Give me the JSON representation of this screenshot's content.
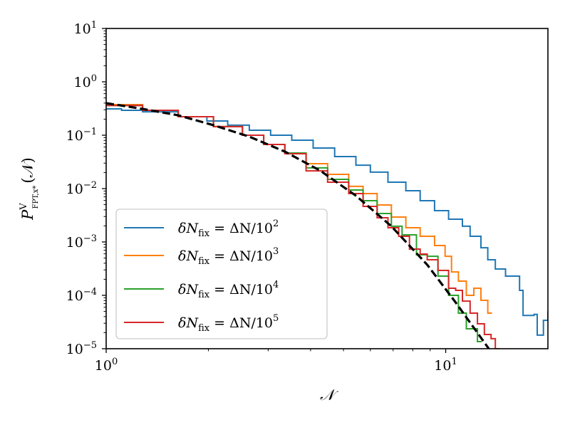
{
  "chart_data": {
    "type": "line",
    "title": "",
    "xlabel": "𝒩",
    "ylabel": "P^V_{FPT,x*}(𝒩)",
    "ylabel_parts": {
      "base": "P",
      "sup": "V",
      "sub": "FPT,x*",
      "arg": "(𝒩)"
    },
    "xscale": "log",
    "yscale": "log",
    "xlim": [
      1,
      20
    ],
    "ylim": [
      1e-05,
      10
    ],
    "xticks": [
      {
        "value": 1,
        "label_base": "10",
        "label_exp": "0"
      },
      {
        "value": 10,
        "label_base": "10",
        "label_exp": "1"
      }
    ],
    "yticks": [
      {
        "value": 1e-05,
        "label_base": "10",
        "label_exp": "−5"
      },
      {
        "value": 0.0001,
        "label_base": "10",
        "label_exp": "−4"
      },
      {
        "value": 0.001,
        "label_base": "10",
        "label_exp": "−3"
      },
      {
        "value": 0.01,
        "label_base": "10",
        "label_exp": "−2"
      },
      {
        "value": 0.1,
        "label_base": "10",
        "label_exp": "−1"
      },
      {
        "value": 1,
        "label_base": "10",
        "label_exp": "0"
      },
      {
        "value": 10,
        "label_base": "10",
        "label_exp": "1"
      }
    ],
    "grid": false,
    "legend_position": "lower-left",
    "series": [
      {
        "name": "δN_fix = ΔN/10^2",
        "legend_main": "δN",
        "legend_sub": "fix",
        "legend_rhs": " = ΔN/10",
        "legend_exp": "2",
        "color": "#1f77b4",
        "style": "step",
        "x": [
          1.0,
          1.11,
          1.28,
          1.63,
          1.98,
          2.28,
          2.64,
          3.05,
          3.52,
          4.07,
          4.71,
          5.44,
          6.0,
          6.76,
          7.63,
          8.41,
          9.27,
          10.2,
          11.2,
          11.8,
          12.7,
          13.3,
          14.0,
          15.0,
          16.1,
          16.5,
          16.9,
          18.2,
          18.6,
          19.4,
          20.0
        ],
        "y": [
          0.311,
          0.293,
          0.275,
          0.222,
          0.185,
          0.154,
          0.124,
          0.1,
          0.0807,
          0.0575,
          0.0398,
          0.0275,
          0.0203,
          0.0132,
          0.00912,
          0.00593,
          0.00386,
          0.00267,
          0.00197,
          0.00128,
          0.00078,
          0.000464,
          0.000311,
          0.000229,
          0.000229,
          0.000124,
          4.2e-05,
          4.4e-05,
          1.8e-05,
          3.4e-05,
          4.9e-05
        ]
      },
      {
        "name": "δN_fix = ΔN/10^3",
        "legend_main": "δN",
        "legend_sub": "fix",
        "legend_rhs": " = ΔN/10",
        "legend_exp": "3",
        "color": "#ff7f0e",
        "style": "step",
        "x": [
          1.0,
          1.28,
          1.63,
          2.07,
          2.52,
          2.91,
          3.36,
          3.88,
          4.49,
          5.18,
          5.71,
          6.28,
          6.92,
          7.63,
          8.41,
          9.27,
          9.96,
          10.4,
          10.9,
          11.5,
          12.1,
          12.7,
          13.3
        ],
        "y": [
          0.374,
          0.293,
          0.222,
          0.145,
          0.1,
          0.0671,
          0.045,
          0.0293,
          0.0185,
          0.011,
          0.00807,
          0.00494,
          0.00293,
          0.00185,
          0.00128,
          0.000858,
          0.00054,
          0.000275,
          0.000185,
          0.0001,
          0.000136,
          8.07e-05,
          4.64e-05
        ]
      },
      {
        "name": "δN_fix = ΔN/10^4",
        "legend_main": "δN",
        "legend_sub": "fix",
        "legend_rhs": " = ΔN/10",
        "legend_exp": "4",
        "color": "#2ca02c",
        "style": "step",
        "x": [
          1.0,
          1.28,
          1.63,
          2.07,
          2.52,
          2.91,
          3.36,
          3.88,
          4.49,
          5.18,
          5.71,
          6.28,
          6.92,
          7.44,
          8.2,
          8.82,
          9.49,
          10.2,
          10.9,
          11.5,
          12.4
        ],
        "y": [
          0.361,
          0.293,
          0.222,
          0.145,
          0.1,
          0.0671,
          0.0464,
          0.0244,
          0.0149,
          0.0094,
          0.00593,
          0.00341,
          0.00197,
          0.00136,
          0.000575,
          0.00054,
          0.000229,
          0.0001,
          4.64e-05,
          2.36e-05,
          1.36e-05
        ]
      },
      {
        "name": "δN_fix = ΔN/10^5",
        "legend_main": "δN",
        "legend_sub": "fix",
        "legend_rhs": " = ΔN/10",
        "legend_exp": "5",
        "color": "#d62728",
        "style": "step",
        "x": [
          1.0,
          1.28,
          1.63,
          2.07,
          2.52,
          2.91,
          3.36,
          3.88,
          4.49,
          5.18,
          5.71,
          6.28,
          6.76,
          7.27,
          7.82,
          8.41,
          8.82,
          9.49,
          10.2,
          10.7,
          11.2,
          11.8,
          12.4,
          13.0,
          13.6,
          14.0
        ],
        "y": [
          0.361,
          0.293,
          0.222,
          0.145,
          0.1,
          0.0671,
          0.045,
          0.0215,
          0.0132,
          0.00807,
          0.00464,
          0.00284,
          0.00185,
          0.00128,
          0.000736,
          0.000593,
          0.000464,
          0.000293,
          0.000136,
          0.000124,
          7.8e-05,
          4.64e-05,
          2.93e-05,
          1.85e-05,
          1.54e-05,
          1e-05
        ]
      },
      {
        "color": "#000000",
        "style": "dashed",
        "x": [
          1.0,
          1.28,
          1.63,
          2.07,
          2.64,
          3.36,
          4.28,
          5.44,
          6.92,
          8.82,
          10.7,
          13.4
        ],
        "y": [
          0.398,
          0.311,
          0.236,
          0.154,
          0.094,
          0.0494,
          0.0215,
          0.00736,
          0.00197,
          0.000374,
          7.36e-05,
          1e-05
        ]
      }
    ]
  }
}
